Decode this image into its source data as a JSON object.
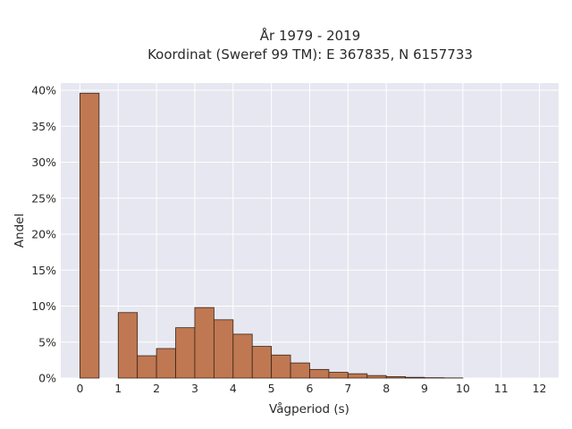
{
  "chart_data": {
    "type": "bar",
    "title_line1": "År 1979 - 2019",
    "title_line2": "Koordinat (Sweref 99 TM): E 367835, N 6157733",
    "xlabel": "Vågperiod (s)",
    "ylabel": "Andel",
    "x_ticks": [
      "0",
      "1",
      "2",
      "3",
      "4",
      "5",
      "6",
      "7",
      "8",
      "9",
      "10",
      "11",
      "12"
    ],
    "y_ticks": [
      "0%",
      "5%",
      "10%",
      "15%",
      "20%",
      "25%",
      "30%",
      "35%",
      "40%"
    ],
    "xlim": [
      -0.5,
      12.5
    ],
    "ylim": [
      0,
      41
    ],
    "grid": true,
    "bin_width": 0.5,
    "bin_starts": [
      0,
      1,
      1.5,
      2,
      2.5,
      3,
      3.5,
      4,
      4.5,
      5,
      5.5,
      6,
      6.5,
      7,
      7.5,
      8,
      8.5,
      9,
      9.5
    ],
    "values": [
      39.6,
      9.1,
      3.1,
      4.1,
      7.0,
      9.8,
      8.1,
      6.1,
      4.4,
      3.2,
      2.1,
      1.2,
      0.8,
      0.6,
      0.35,
      0.2,
      0.1,
      0.05,
      0.02
    ],
    "bar_color": "#bf7852",
    "bar_edge_color": "#3a2418",
    "plot_bg": "#e6e7f0",
    "grid_color": "#ffffff"
  }
}
